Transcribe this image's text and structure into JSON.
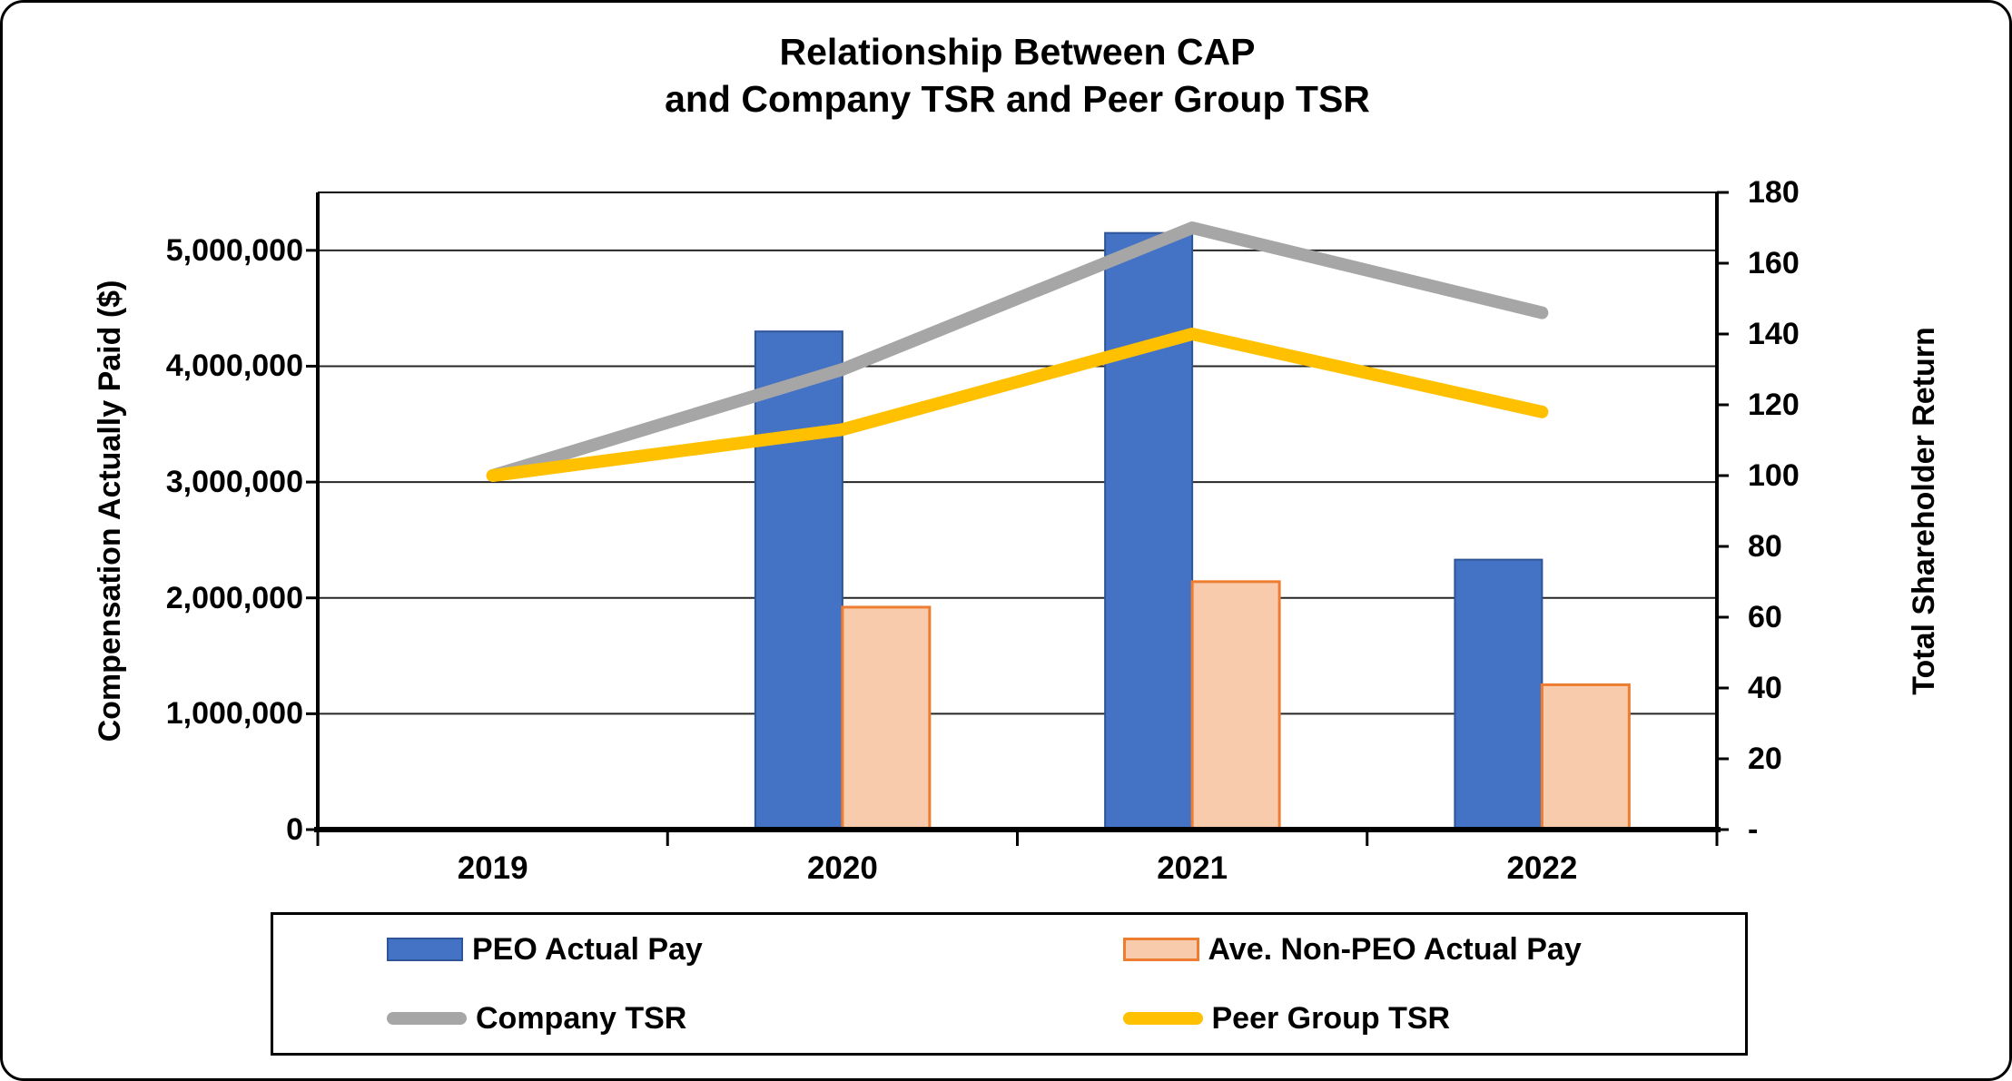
{
  "title": {
    "line1": "Relationship Between CAP",
    "line2": "and Company TSR and Peer Group TSR"
  },
  "axes": {
    "left": {
      "title": "Compensation Actually Paid ($)",
      "ticks": [
        {
          "label": "0",
          "value": 0
        },
        {
          "label": "1,000,000",
          "value": 1000000
        },
        {
          "label": "2,000,000",
          "value": 2000000
        },
        {
          "label": "3,000,000",
          "value": 3000000
        },
        {
          "label": "4,000,000",
          "value": 4000000
        },
        {
          "label": "5,000,000",
          "value": 5000000
        }
      ]
    },
    "right": {
      "title": "Total Shareholder Return",
      "ticks": [
        {
          "label": "-",
          "value": 0
        },
        {
          "label": "20",
          "value": 20
        },
        {
          "label": "40",
          "value": 40
        },
        {
          "label": "60",
          "value": 60
        },
        {
          "label": "80",
          "value": 80
        },
        {
          "label": "100",
          "value": 100
        },
        {
          "label": "120",
          "value": 120
        },
        {
          "label": "140",
          "value": 140
        },
        {
          "label": "160",
          "value": 160
        },
        {
          "label": "180",
          "value": 180
        }
      ]
    },
    "x": {
      "categories": [
        "2019",
        "2020",
        "2021",
        "2022"
      ]
    }
  },
  "colors": {
    "peo_bar_fill": "#4472C4",
    "peo_bar_border": "#2E5597",
    "nonpeo_bar_fill": "#F8CBAD",
    "nonpeo_bar_border": "#ED7D31",
    "company_tsr_line": "#A6A6A6",
    "peer_tsr_line": "#FFC000",
    "grid_line": "#262626",
    "axis_line": "#000000"
  },
  "chart_data": {
    "type": "combo",
    "title": "Relationship Between CAP and Company TSR and Peer Group TSR",
    "categories": [
      "2019",
      "2020",
      "2021",
      "2022"
    ],
    "series": [
      {
        "name": "PEO Actual Pay",
        "type": "bar",
        "axis": "left",
        "color": "#4472C4",
        "border_color": "#2E5597",
        "values": [
          null,
          4300000,
          5150000,
          2330000
        ]
      },
      {
        "name": "Ave. Non-PEO Actual Pay",
        "type": "bar",
        "axis": "left",
        "color": "#F8CBAD",
        "border_color": "#ED7D31",
        "values": [
          null,
          1920000,
          2140000,
          1250000
        ]
      },
      {
        "name": "Company TSR",
        "type": "line",
        "axis": "right",
        "color": "#A6A6A6",
        "values": [
          100,
          130,
          170,
          146
        ]
      },
      {
        "name": "Peer Group TSR",
        "type": "line",
        "axis": "right",
        "color": "#FFC000",
        "values": [
          100,
          113,
          140,
          118
        ]
      }
    ],
    "ylabel_left": "Compensation Actually Paid ($)",
    "ylabel_right": "Total Shareholder Return",
    "ylim_left": [
      0,
      5500000
    ],
    "ylim_right": [
      0,
      180
    ],
    "grid": true,
    "legend_position": "bottom"
  }
}
